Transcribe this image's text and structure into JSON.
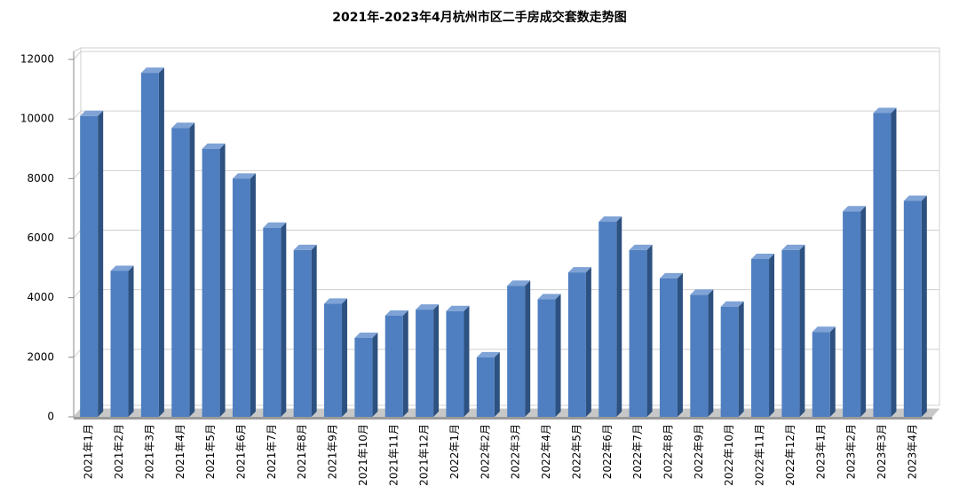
{
  "chart_data": {
    "type": "bar3d",
    "title": "2021年-2023年4月杭州市区二手房成交套数走势图",
    "categories": [
      "2021年1月",
      "2021年2月",
      "2021年3月",
      "2021年4月",
      "2021年5月",
      "2021年6月",
      "2021年7月",
      "2021年8月",
      "2021年9月",
      "2021年10月",
      "2021年11月",
      "2021年12月",
      "2022年1月",
      "2022年2月",
      "2022年3月",
      "2022年4月",
      "2022年5月",
      "2022年6月",
      "2022年7月",
      "2022年8月",
      "2022年9月",
      "2022年10月",
      "2022年11月",
      "2022年12月",
      "2023年1月",
      "2023年2月",
      "2023年3月",
      "2023年4月"
    ],
    "values": [
      10100,
      4900,
      11550,
      9700,
      9000,
      8000,
      6350,
      5600,
      3800,
      2650,
      3400,
      3600,
      3550,
      2000,
      4400,
      3950,
      4850,
      6550,
      5600,
      4650,
      4100,
      3700,
      5300,
      5600,
      2850,
      6900,
      10200,
      7250
    ],
    "color": "#4f7fc0",
    "ylim": [
      0,
      12000
    ],
    "yticks": [
      0,
      2000,
      4000,
      6000,
      8000,
      10000,
      12000
    ],
    "grid": true
  }
}
